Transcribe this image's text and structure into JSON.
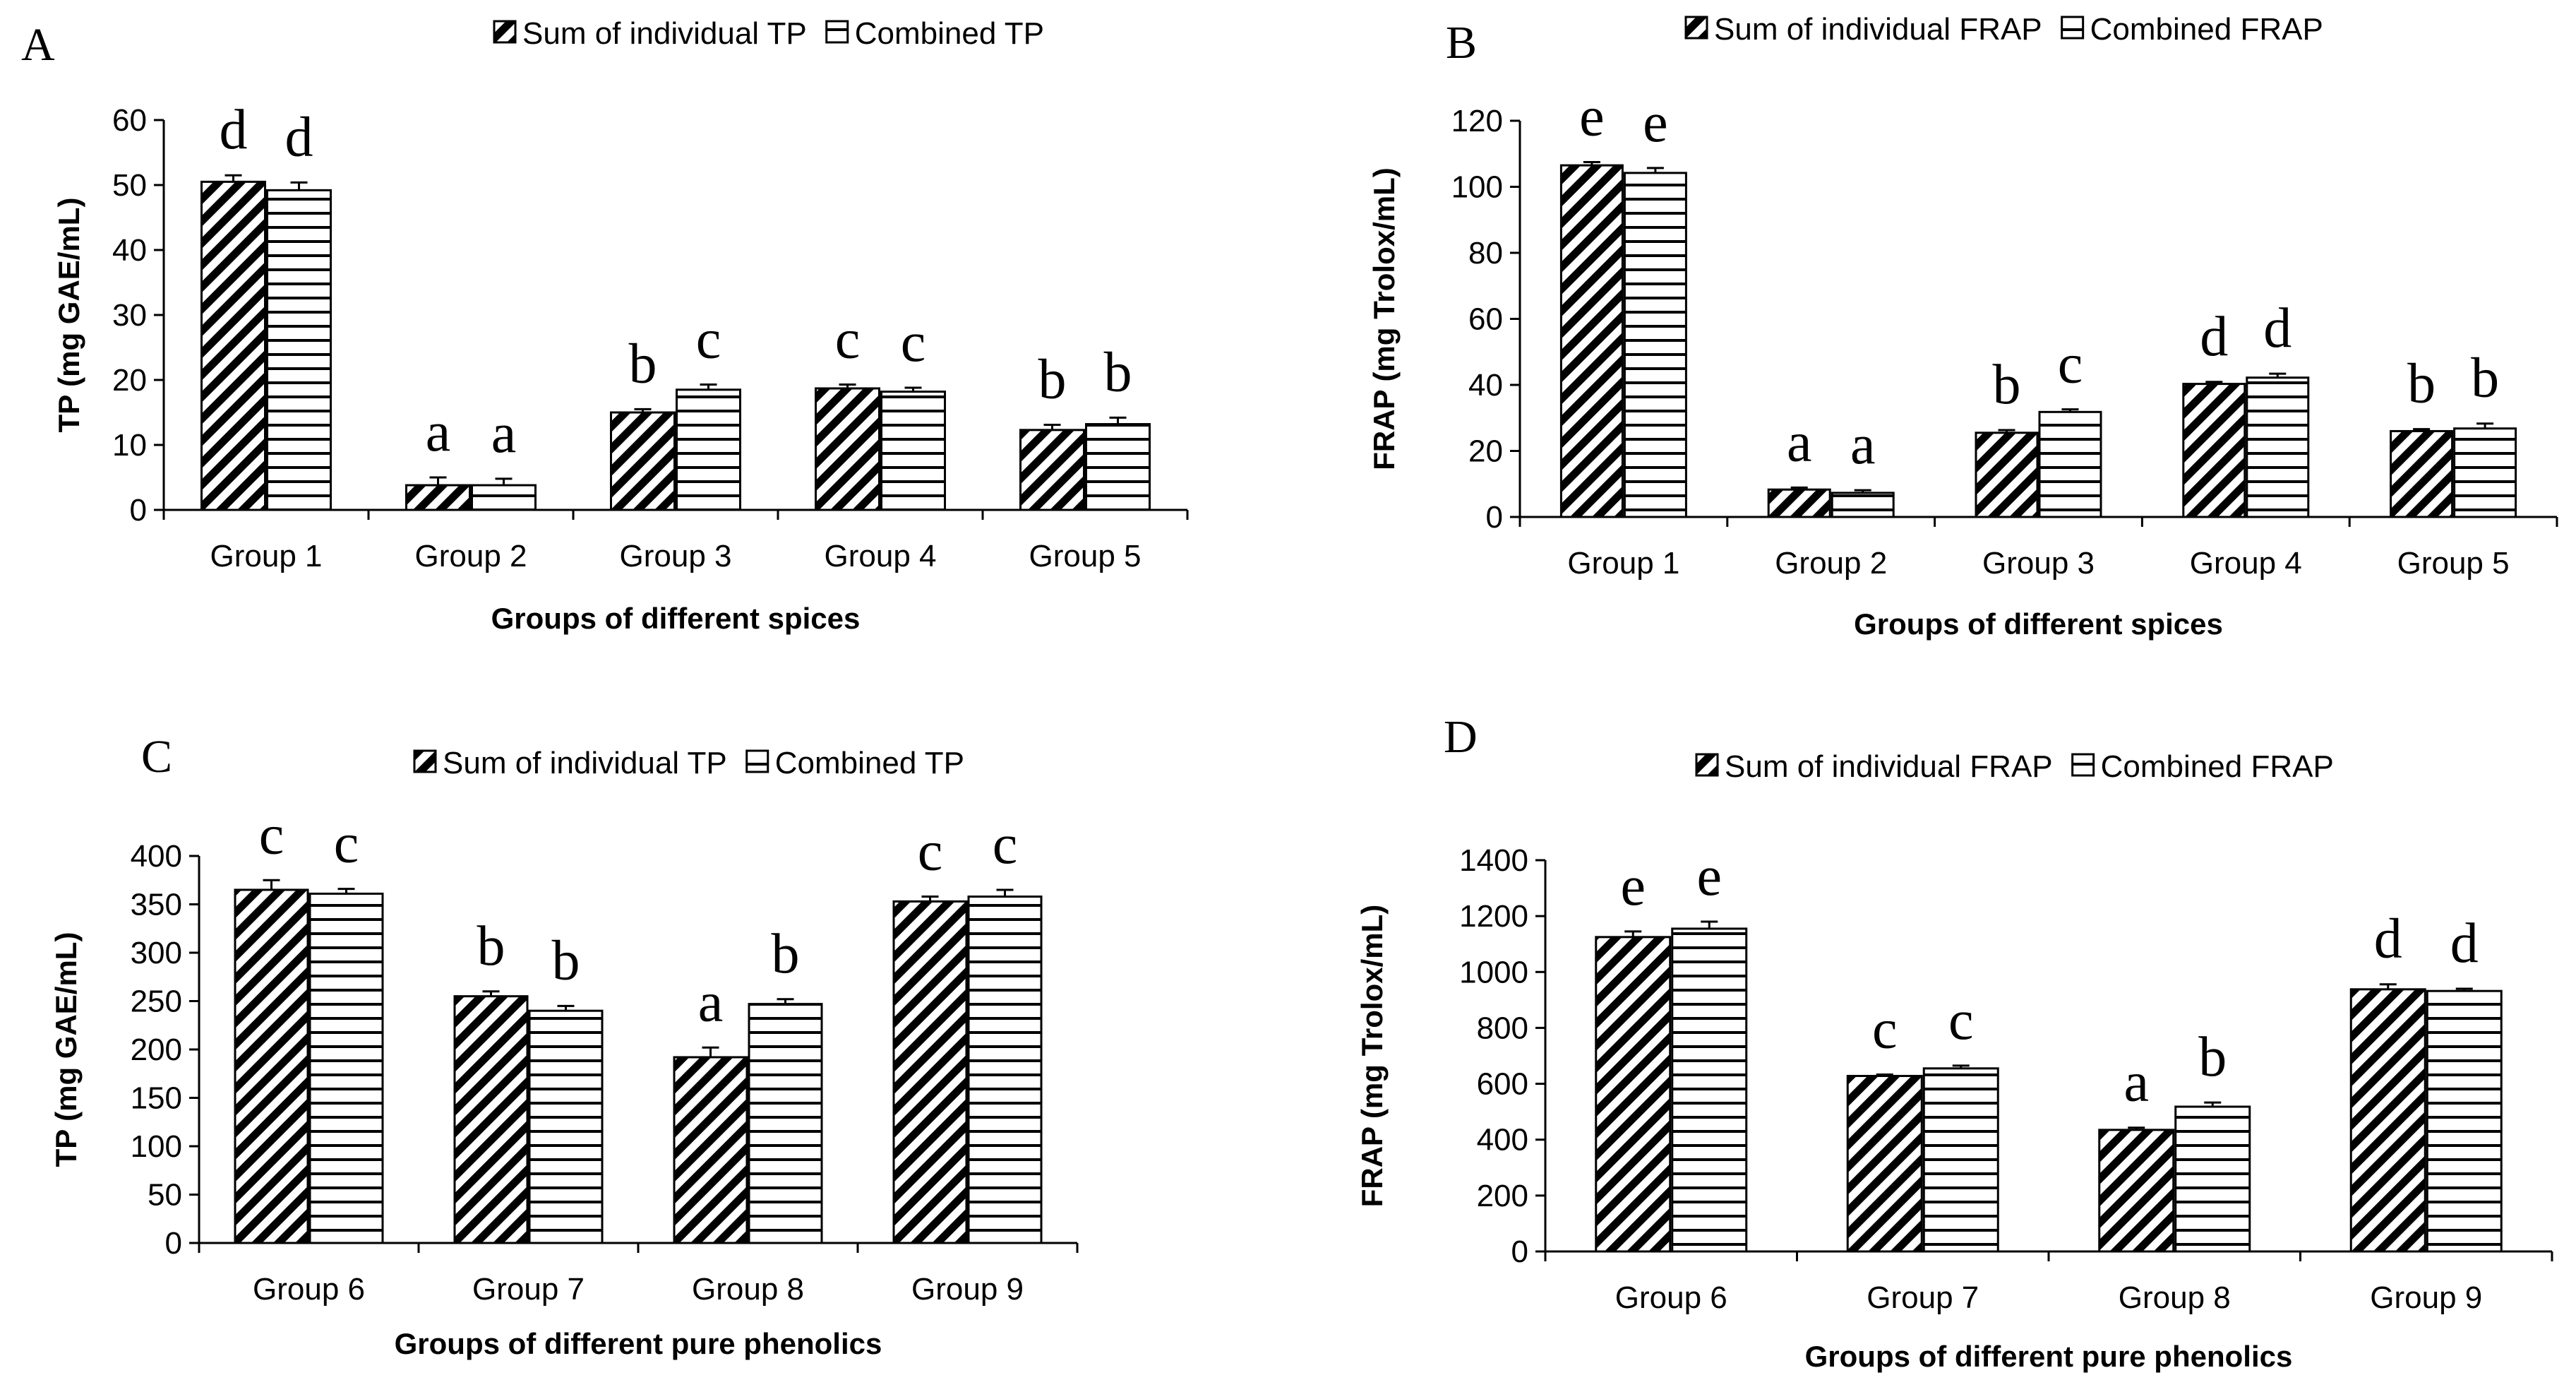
{
  "chart_data": [
    {
      "panel": "A",
      "type": "bar",
      "ylabel": "TP (mg GAE/mL)",
      "xlabel": "Groups of different spices",
      "ylim": [
        0,
        60
      ],
      "yticks": [
        0,
        10,
        20,
        30,
        40,
        50,
        60
      ],
      "categories": [
        "Group 1",
        "Group 2",
        "Group 3",
        "Group 4",
        "Group 5"
      ],
      "series": [
        {
          "name": "Sum of individual TP",
          "pattern": "diagonal",
          "values": [
            50.5,
            3.8,
            15.0,
            18.7,
            12.3
          ],
          "errors": [
            1.0,
            1.2,
            0.5,
            0.6,
            0.8
          ],
          "letters": [
            "d",
            "a",
            "b",
            "c",
            "b"
          ]
        },
        {
          "name": "Combined TP",
          "pattern": "horizontal",
          "values": [
            49.2,
            3.8,
            18.5,
            18.2,
            13.2
          ],
          "errors": [
            1.2,
            1.0,
            0.8,
            0.6,
            1.0
          ],
          "letters": [
            "d",
            "a",
            "c",
            "c",
            "b"
          ]
        }
      ]
    },
    {
      "panel": "B",
      "type": "bar",
      "ylabel": "FRAP (mg Trolox/mL)",
      "xlabel": "Groups of different spices",
      "ylim": [
        0,
        120
      ],
      "yticks": [
        0,
        20,
        40,
        60,
        80,
        100,
        120
      ],
      "categories": [
        "Group 1",
        "Group 2",
        "Group 3",
        "Group 4",
        "Group 5"
      ],
      "series": [
        {
          "name": "Sum of individual FRAP",
          "pattern": "diagonal",
          "values": [
            106.5,
            8.3,
            25.5,
            40.3,
            26.0
          ],
          "errors": [
            1.0,
            0.6,
            0.8,
            0.6,
            0.6
          ],
          "letters": [
            "e",
            "a",
            "b",
            "d",
            "b"
          ]
        },
        {
          "name": "Combined FRAP",
          "pattern": "horizontal",
          "values": [
            104.2,
            7.3,
            31.8,
            42.2,
            26.8
          ],
          "errors": [
            1.5,
            0.8,
            0.8,
            1.2,
            1.5
          ],
          "letters": [
            "e",
            "a",
            "c",
            "d",
            "b"
          ]
        }
      ]
    },
    {
      "panel": "C",
      "type": "bar",
      "ylabel": "TP (mg GAE/mL)",
      "xlabel": "Groups of different pure phenolics",
      "ylim": [
        0,
        400
      ],
      "yticks": [
        0,
        50,
        100,
        150,
        200,
        250,
        300,
        350,
        400
      ],
      "categories": [
        "Group 6",
        "Group 7",
        "Group 8",
        "Group 9"
      ],
      "series": [
        {
          "name": "Sum of individual TP",
          "pattern": "diagonal",
          "values": [
            365,
            255,
            192,
            353
          ],
          "errors": [
            10,
            5,
            10,
            5
          ],
          "letters": [
            "c",
            "b",
            "a",
            "c"
          ]
        },
        {
          "name": "Combined TP",
          "pattern": "horizontal",
          "values": [
            361,
            240,
            247,
            358
          ],
          "errors": [
            5,
            5,
            5,
            7
          ],
          "letters": [
            "c",
            "b",
            "b",
            "c"
          ]
        }
      ]
    },
    {
      "panel": "D",
      "type": "bar",
      "ylabel": "FRAP (mg Trolox/mL)",
      "xlabel": "Groups of different pure phenolics",
      "ylim": [
        0,
        1400
      ],
      "yticks": [
        0,
        200,
        400,
        600,
        800,
        1000,
        1200,
        1400
      ],
      "categories": [
        "Group 6",
        "Group 7",
        "Group 8",
        "Group 9"
      ],
      "series": [
        {
          "name": "Sum of individual FRAP",
          "pattern": "diagonal",
          "values": [
            1125,
            628,
            435,
            938
          ],
          "errors": [
            20,
            5,
            8,
            18
          ],
          "letters": [
            "e",
            "c",
            "a",
            "d"
          ]
        },
        {
          "name": "Combined FRAP",
          "pattern": "horizontal",
          "values": [
            1155,
            655,
            518,
            932
          ],
          "errors": [
            25,
            10,
            15,
            8
          ],
          "letters": [
            "e",
            "c",
            "b",
            "d"
          ]
        }
      ]
    }
  ]
}
